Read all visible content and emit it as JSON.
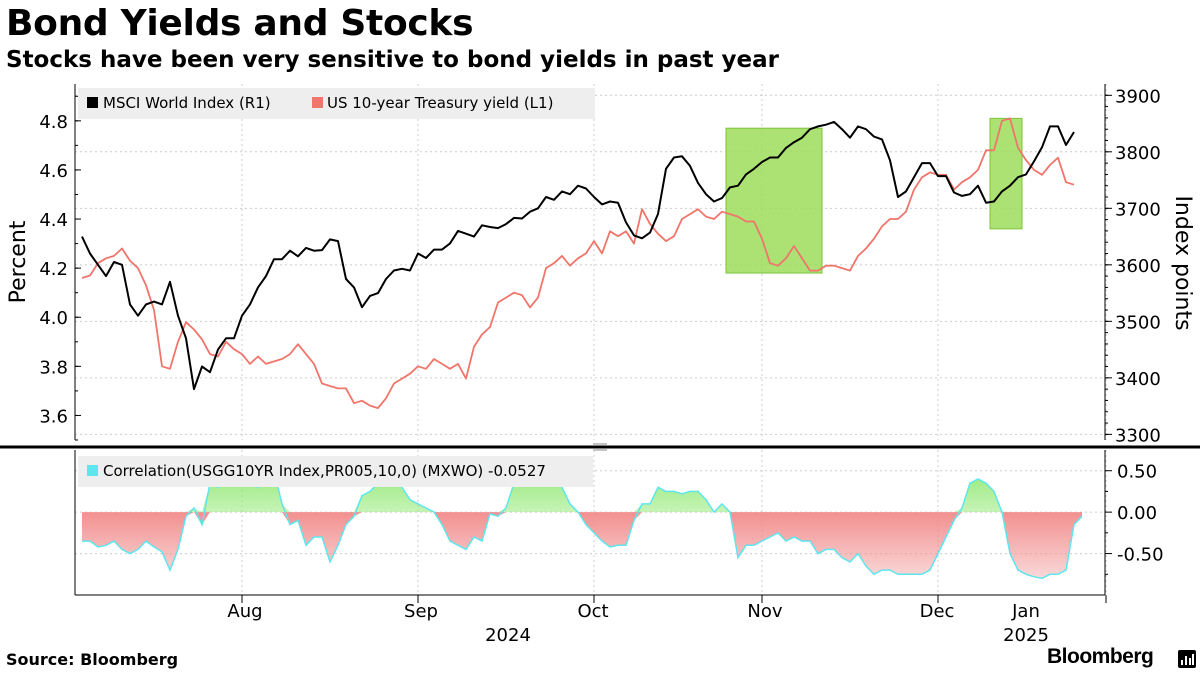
{
  "title": "Bond Yields and Stocks",
  "subtitle": "Stocks have been very sensitive to bond yields in past year",
  "source": "Source: Bloomberg",
  "brand": "Bloomberg",
  "colors": {
    "msci": "#000000",
    "yield": "#f0756b",
    "corr_line": "#5ee6ee",
    "corr_positive": "#8ee86f",
    "corr_negative": "#f29090",
    "highlight_fill": "#9edc5a",
    "highlight_stroke": "#7dc43a",
    "legend_bg": "#eeeeee"
  },
  "chart_data": [
    {
      "type": "line",
      "title": "Bond Yields and Stocks",
      "ylabel_left": "Percent",
      "ylabel_right": "Index points",
      "ylim_left": [
        3.5,
        4.95
      ],
      "ylim_right": [
        3290,
        3920
      ],
      "yticks_left": [
        "4.8",
        "4.6",
        "4.4",
        "4.2",
        "4.0",
        "3.8",
        "3.6"
      ],
      "yticks_right": [
        "3900",
        "3800",
        "3700",
        "3600",
        "3500",
        "3400",
        "3300"
      ],
      "legend": [
        "MSCI World Index (R1)",
        "US 10-year Treasury yield (L1)"
      ],
      "highlights": [
        {
          "label": "Nov 2024",
          "from": 80.5,
          "to": 92.5,
          "yield_low": 4.18,
          "yield_high": 4.77
        },
        {
          "label": "Jan 2025",
          "from": 113.5,
          "to": 117.5,
          "yield_low": 4.36,
          "yield_high": 4.81
        }
      ],
      "series": [
        {
          "name": "MSCI World Index (R1)",
          "axis": "right",
          "values": [
            3650,
            3620,
            3600,
            3580,
            3605,
            3600,
            3530,
            3510,
            3530,
            3535,
            3530,
            3570,
            3510,
            3470,
            3380,
            3420,
            3410,
            3450,
            3470,
            3470,
            3510,
            3530,
            3560,
            3580,
            3610,
            3610,
            3625,
            3615,
            3630,
            3625,
            3626,
            3645,
            3642,
            3575,
            3560,
            3525,
            3545,
            3550,
            3575,
            3590,
            3593,
            3590,
            3620,
            3612,
            3627,
            3627,
            3638,
            3660,
            3655,
            3650,
            3670,
            3667,
            3665,
            3672,
            3683,
            3682,
            3694,
            3700,
            3720,
            3715,
            3730,
            3725,
            3740,
            3735,
            3720,
            3707,
            3712,
            3710,
            3675,
            3652,
            3647,
            3657,
            3690,
            3770,
            3790,
            3792,
            3775,
            3745,
            3725,
            3712,
            3718,
            3737,
            3740,
            3760,
            3770,
            3782,
            3790,
            3790,
            3807,
            3817,
            3825,
            3840,
            3845,
            3848,
            3853,
            3840,
            3825,
            3845,
            3840,
            3827,
            3822,
            3785,
            3720,
            3730,
            3755,
            3780,
            3780,
            3757,
            3757,
            3728,
            3722,
            3725,
            3740,
            3710,
            3712,
            3730,
            3740,
            3755,
            3760,
            3783,
            3808,
            3845,
            3845,
            3812,
            3835
          ]
        },
        {
          "name": "US 10-year Treasury yield (L1)",
          "axis": "left",
          "values": [
            4.16,
            4.17,
            4.22,
            4.24,
            4.25,
            4.28,
            4.23,
            4.2,
            4.13,
            4.03,
            3.8,
            3.79,
            3.9,
            3.98,
            3.95,
            3.91,
            3.85,
            3.84,
            3.9,
            3.87,
            3.85,
            3.81,
            3.84,
            3.81,
            3.82,
            3.83,
            3.85,
            3.89,
            3.85,
            3.81,
            3.73,
            3.72,
            3.71,
            3.71,
            3.65,
            3.66,
            3.64,
            3.63,
            3.67,
            3.73,
            3.75,
            3.77,
            3.8,
            3.79,
            3.83,
            3.81,
            3.79,
            3.81,
            3.75,
            3.88,
            3.93,
            3.96,
            4.06,
            4.08,
            4.1,
            4.09,
            4.04,
            4.08,
            4.2,
            4.22,
            4.25,
            4.21,
            4.24,
            4.26,
            4.31,
            4.26,
            4.35,
            4.33,
            4.35,
            4.3,
            4.44,
            4.38,
            4.34,
            4.31,
            4.33,
            4.4,
            4.42,
            4.44,
            4.41,
            4.4,
            4.43,
            4.42,
            4.41,
            4.39,
            4.39,
            4.32,
            4.22,
            4.21,
            4.24,
            4.29,
            4.24,
            4.19,
            4.19,
            4.21,
            4.21,
            4.2,
            4.19,
            4.25,
            4.28,
            4.32,
            4.37,
            4.4,
            4.4,
            4.43,
            4.52,
            4.57,
            4.59,
            4.58,
            4.58,
            4.52,
            4.55,
            4.57,
            4.6,
            4.68,
            4.68,
            4.8,
            4.81,
            4.69,
            4.64,
            4.6,
            4.58,
            4.62,
            4.65,
            4.55,
            4.54
          ]
        }
      ]
    },
    {
      "type": "area",
      "title": "Correlation",
      "ylim": [
        -1.0,
        0.75
      ],
      "yticks": [
        "0.50",
        "0.00",
        "-0.50"
      ],
      "legend": [
        "Correlation(USGG10YR Index,PR005,10,0) (MXWO) -0.0527"
      ],
      "last_value": -0.0527,
      "values": [
        -0.35,
        -0.35,
        -0.42,
        -0.4,
        -0.35,
        -0.45,
        -0.5,
        -0.45,
        -0.35,
        -0.42,
        -0.48,
        -0.7,
        -0.45,
        -0.05,
        0.05,
        -0.15,
        0.35,
        0.3,
        0.35,
        0.48,
        0.55,
        0.35,
        0.3,
        0.4,
        0.5,
        0.1,
        -0.15,
        -0.1,
        -0.4,
        -0.3,
        -0.3,
        -0.6,
        -0.4,
        -0.15,
        -0.05,
        0.2,
        0.25,
        0.35,
        0.4,
        0.4,
        0.3,
        0.15,
        0.1,
        0.05,
        0.0,
        -0.15,
        -0.35,
        -0.4,
        -0.45,
        -0.3,
        -0.35,
        -0.02,
        -0.05,
        0.05,
        0.35,
        0.4,
        0.5,
        0.55,
        0.6,
        0.45,
        0.3,
        0.1,
        0.0,
        -0.15,
        -0.25,
        -0.35,
        -0.42,
        -0.4,
        -0.4,
        -0.1,
        0.1,
        0.1,
        0.3,
        0.25,
        0.25,
        0.22,
        0.25,
        0.25,
        0.15,
        0.0,
        0.1,
        0.0,
        -0.55,
        -0.4,
        -0.4,
        -0.35,
        -0.3,
        -0.25,
        -0.35,
        -0.3,
        -0.35,
        -0.35,
        -0.5,
        -0.45,
        -0.45,
        -0.55,
        -0.6,
        -0.5,
        -0.65,
        -0.75,
        -0.7,
        -0.7,
        -0.75,
        -0.75,
        -0.75,
        -0.75,
        -0.7,
        -0.5,
        -0.3,
        -0.1,
        0.05,
        0.35,
        0.4,
        0.35,
        0.25,
        0.0,
        -0.5,
        -0.7,
        -0.75,
        -0.78,
        -0.8,
        -0.75,
        -0.75,
        -0.7,
        -0.15,
        -0.05
      ]
    }
  ],
  "x_axis": {
    "ticks": [
      "Aug",
      "Sep",
      "Oct",
      "Nov",
      "Dec",
      "Jan"
    ],
    "tick_index": [
      20,
      42,
      64,
      85,
      107,
      128
    ],
    "year_labels": [
      {
        "text": "2024",
        "index": 58
      },
      {
        "text": "2025",
        "index": 127
      }
    ]
  }
}
